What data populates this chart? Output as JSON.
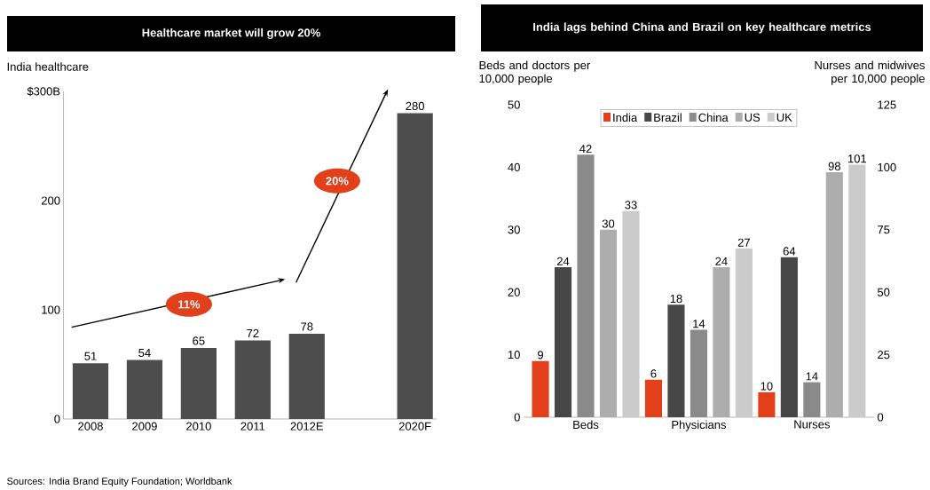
{
  "chart_data": [
    {
      "type": "bar",
      "title": "Healthcare market will grow 20%",
      "ylabel": "India healthcare",
      "categories": [
        "2008",
        "2009",
        "2010",
        "2011",
        "2012E",
        null,
        "2020F"
      ],
      "values": [
        51,
        54,
        65,
        72,
        78,
        null,
        280
      ],
      "color": "#4d4d4d",
      "ylim": [
        0,
        300
      ],
      "yticks": [
        0,
        100,
        200,
        {
          "value": 300,
          "label": "$300B"
        }
      ],
      "data_labels": true,
      "annotations": [
        "11%",
        "20%",
        "Sources: India Brand Equity Foundation; Worldbank"
      ]
    },
    {
      "type": "bar",
      "title": "India lags behind China and Brazil on key healthcare metrics",
      "ylabel": "Beds and doctors per 10,000 people",
      "y2label": "Nurses and midwives per 10,000 people",
      "categories": [
        "Beds",
        "Physicians",
        "Nurses"
      ],
      "series": [
        {
          "name": "India",
          "color": "#e2401b",
          "values": [
            9,
            6,
            null
          ]
        },
        {
          "name": "Brazil",
          "color": "#474747",
          "values": [
            24,
            18,
            null
          ]
        },
        {
          "name": "China",
          "color": "#8a8a8a",
          "values": [
            42,
            14,
            null
          ]
        },
        {
          "name": "US",
          "color": "#adadad",
          "values": [
            30,
            24,
            null
          ]
        },
        {
          "name": "UK",
          "color": "#cbcbcb",
          "values": [
            33,
            27,
            null
          ]
        },
        {
          "color": "#e2401b",
          "axis": "y2",
          "values": [
            null,
            null,
            10
          ]
        },
        {
          "color": "#474747",
          "axis": "y2",
          "values": [
            null,
            null,
            64
          ]
        },
        {
          "color": "#8a8a8a",
          "axis": "y2",
          "values": [
            null,
            null,
            14
          ]
        },
        {
          "color": "#adadad",
          "axis": "y2",
          "values": [
            null,
            null,
            98
          ]
        },
        {
          "color": "#cbcbcb",
          "axis": "y2",
          "values": [
            null,
            null,
            101
          ]
        }
      ],
      "ylim": [
        0,
        50
      ],
      "yticks": [
        0,
        10,
        20,
        30,
        40,
        50
      ],
      "y2lim": [
        0,
        125
      ],
      "y2ticks": [
        0,
        25,
        50,
        75,
        100,
        125
      ],
      "data_labels": true,
      "legend": "top"
    }
  ]
}
